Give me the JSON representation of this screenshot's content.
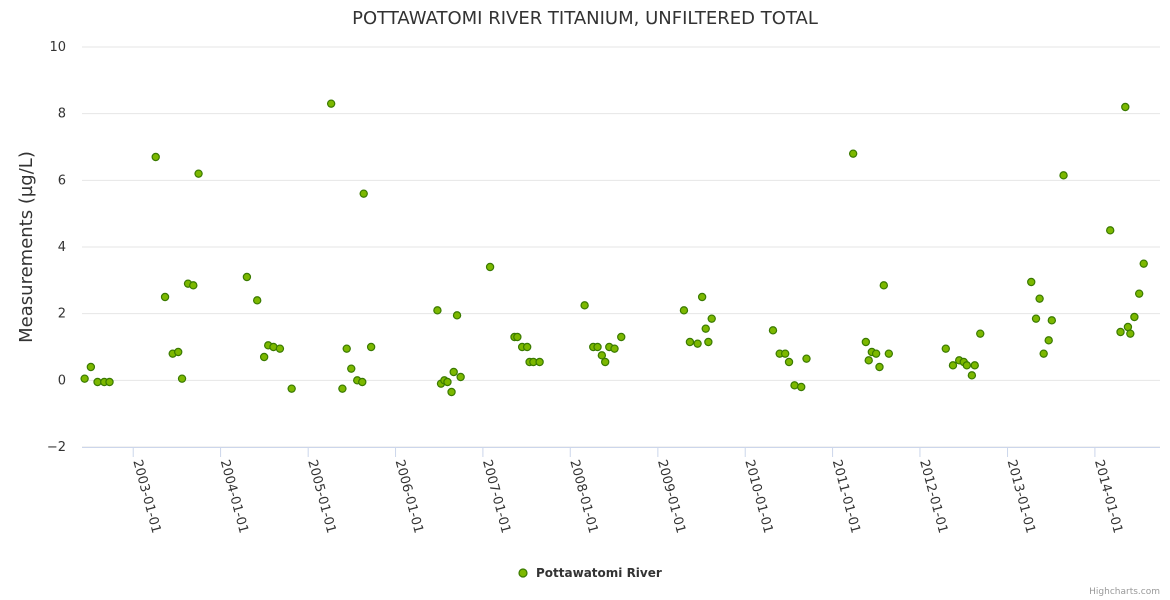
{
  "chart_data": {
    "type": "scatter",
    "title": "POTTAWATOMI RIVER TITANIUM, UNFILTERED TOTAL",
    "xlabel": "",
    "ylabel": "Measurements (µg/L)",
    "ylim": [
      -2,
      10
    ],
    "yticks": [
      -2,
      0,
      2,
      4,
      6,
      8,
      10
    ],
    "xlim": [
      "2002-06-01",
      "2014-09-30"
    ],
    "xticks": [
      "2003-01-01",
      "2004-01-01",
      "2005-01-01",
      "2006-01-01",
      "2007-01-01",
      "2008-01-01",
      "2009-01-01",
      "2010-01-01",
      "2011-01-01",
      "2012-01-01",
      "2013-01-01",
      "2014-01-01"
    ],
    "grid": true,
    "legend": "bottom-center",
    "colors": {
      "marker_fill": "#7cb800",
      "marker_stroke": "#3a7a00",
      "grid": "#e6e6e6",
      "axis": "#ccd6eb"
    },
    "series": [
      {
        "name": "Pottawatomi River",
        "x": [
          "2002-06-12",
          "2002-07-08",
          "2002-08-05",
          "2002-09-02",
          "2002-09-24",
          "2003-04-05",
          "2003-05-14",
          "2003-06-15",
          "2003-07-08",
          "2003-07-24",
          "2003-08-18",
          "2003-09-09",
          "2003-10-01",
          "2004-04-20",
          "2004-06-02",
          "2004-07-01",
          "2004-07-18",
          "2004-08-09",
          "2004-09-05",
          "2004-10-24",
          "2005-04-07",
          "2005-05-24",
          "2005-06-11",
          "2005-06-30",
          "2005-07-25",
          "2005-08-15",
          "2005-08-21",
          "2005-09-21",
          "2006-06-25",
          "2006-07-10",
          "2006-07-24",
          "2006-08-06",
          "2006-08-23",
          "2006-09-01",
          "2006-09-15",
          "2006-09-30",
          "2007-01-31",
          "2007-05-13",
          "2007-05-25",
          "2007-06-14",
          "2007-07-05",
          "2007-07-15",
          "2007-07-31",
          "2007-08-26",
          "2008-03-01",
          "2008-04-06",
          "2008-04-24",
          "2008-05-12",
          "2008-05-26",
          "2008-06-12",
          "2008-07-04",
          "2008-08-01",
          "2009-04-20",
          "2009-05-15",
          "2009-06-16",
          "2009-07-05",
          "2009-07-20",
          "2009-07-31",
          "2009-08-14",
          "2010-04-27",
          "2010-05-25",
          "2010-06-17",
          "2010-07-03",
          "2010-07-26",
          "2010-08-23",
          "2010-09-14",
          "2011-03-28",
          "2011-05-20",
          "2011-06-01",
          "2011-06-14",
          "2011-07-02",
          "2011-07-16",
          "2011-08-03",
          "2011-08-24",
          "2012-04-18",
          "2012-05-18",
          "2012-06-13",
          "2012-07-02",
          "2012-07-15",
          "2012-08-05",
          "2012-08-17",
          "2012-09-09",
          "2013-04-10",
          "2013-04-30",
          "2013-05-15",
          "2013-06-01",
          "2013-06-22",
          "2013-07-05",
          "2013-08-23",
          "2014-03-06",
          "2014-04-18",
          "2014-05-08",
          "2014-05-19",
          "2014-05-29",
          "2014-06-15",
          "2014-07-05",
          "2014-07-24"
        ],
        "y": [
          0.05,
          0.4,
          -0.05,
          -0.05,
          -0.05,
          6.7,
          2.5,
          0.8,
          0.85,
          0.05,
          2.9,
          2.85,
          6.2,
          3.1,
          2.4,
          0.7,
          1.05,
          1.0,
          0.95,
          -0.25,
          8.3,
          -0.25,
          0.95,
          0.35,
          0.0,
          -0.05,
          5.6,
          1.0,
          2.1,
          -0.1,
          0.0,
          -0.05,
          -0.35,
          0.25,
          1.95,
          0.1,
          3.4,
          1.3,
          1.3,
          1.0,
          1.0,
          0.55,
          0.55,
          0.55,
          2.25,
          1.0,
          1.0,
          0.75,
          0.55,
          1.0,
          0.95,
          1.3,
          2.1,
          1.15,
          1.1,
          2.5,
          1.55,
          1.15,
          1.85,
          1.5,
          0.8,
          0.8,
          0.55,
          -0.15,
          -0.2,
          0.65,
          6.8,
          1.15,
          0.6,
          0.85,
          0.8,
          0.4,
          2.85,
          0.8,
          0.95,
          0.45,
          0.6,
          0.55,
          0.45,
          0.15,
          0.45,
          1.4,
          2.95,
          1.85,
          2.45,
          0.8,
          1.2,
          1.8,
          6.15,
          4.5,
          1.45,
          8.2,
          1.6,
          1.4,
          1.9,
          2.6,
          3.5
        ]
      }
    ]
  },
  "credit": "Highcharts.com"
}
